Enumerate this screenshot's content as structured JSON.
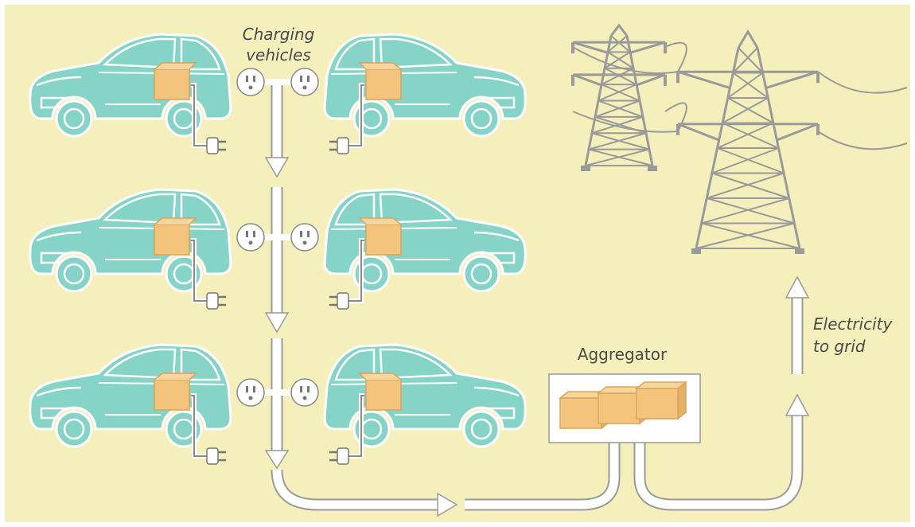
{
  "labels": {
    "charging_vehicles": [
      "Charging",
      "vehicles"
    ],
    "aggregator": "Aggregator",
    "electricity_to_grid": [
      "Electricity",
      "to grid"
    ]
  }
}
